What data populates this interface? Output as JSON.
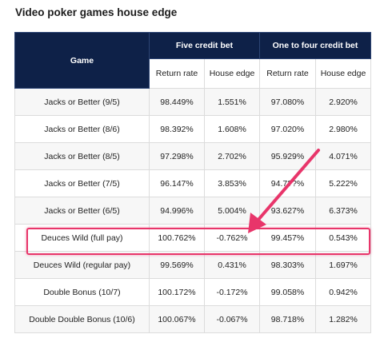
{
  "title": "Video poker games house edge",
  "header": {
    "game": "Game",
    "five_credit": "Five credit bet",
    "one_to_four": "One to four credit bet",
    "return_rate": "Return rate",
    "house_edge": "House edge"
  },
  "rows": [
    {
      "game": "Jacks or Better (9/5)",
      "rr5": "98.449%",
      "he5": "1.551%",
      "rr14": "97.080%",
      "he14": "2.920%"
    },
    {
      "game": "Jacks or Better (8/6)",
      "rr5": "98.392%",
      "he5": "1.608%",
      "rr14": "97.020%",
      "he14": "2.980%"
    },
    {
      "game": "Jacks or Better (8/5)",
      "rr5": "97.298%",
      "he5": "2.702%",
      "rr14": "95.929%",
      "he14": "4.071%"
    },
    {
      "game": "Jacks or Better (7/5)",
      "rr5": "96.147%",
      "he5": "3.853%",
      "rr14": "94.7??%",
      "he14": "5.222%"
    },
    {
      "game": "Jacks or Better (6/5)",
      "rr5": "94.996%",
      "he5": "5.004%",
      "rr14": "93.627%",
      "he14": "6.373%"
    },
    {
      "game": "Deuces Wild (full pay)",
      "rr5": "100.762%",
      "he5": "-0.762%",
      "rr14": "99.457%",
      "he14": "0.543%"
    },
    {
      "game": "Deuces Wild (regular pay)",
      "rr5": "99.569%",
      "he5": "0.431%",
      "rr14": "98.303%",
      "he14": "1.697%"
    },
    {
      "game": "Double Bonus (10/7)",
      "rr5": "100.172%",
      "he5": "-0.172%",
      "rr14": "99.058%",
      "he14": "0.942%"
    },
    {
      "game": "Double Double Bonus (10/6)",
      "rr5": "100.067%",
      "he5": "-0.067%",
      "rr14": "98.718%",
      "he14": "1.282%"
    }
  ],
  "annotation": {
    "color": "#e8356a",
    "highlighted_row": "Deuces Wild (full pay)"
  }
}
